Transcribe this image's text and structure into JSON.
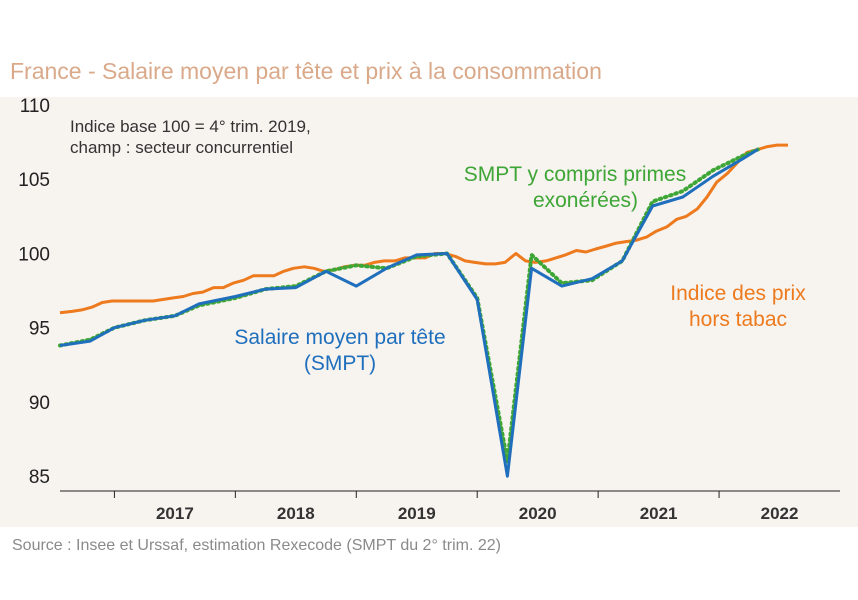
{
  "title": "France - Salaire moyen par tête et prix à la consommation",
  "source": "Source : Insee et Urssaf, estimation Rexecode (SMPT du 2° trim. 22)",
  "note_line1": "Indice base 100 = 4° trim. 2019,",
  "note_line2": "champ : secteur concurrentiel",
  "labels": {
    "smpt_primes_1": "SMPT y compris primes",
    "smpt_primes_2": "exonérées)",
    "prix_1": "Indice des prix",
    "prix_2": "hors tabac",
    "smpt_1": "Salaire moyen par tête",
    "smpt_2": "(SMPT)"
  },
  "colors": {
    "background": "#f7f3ef",
    "smpt": "#1f6fbd",
    "smpt_primes": "#3ea636",
    "prix": "#ee7a1e",
    "title": "#d9a98a"
  },
  "chart_data": {
    "type": "line",
    "title": "France - Salaire moyen par tête et prix à la consommation",
    "xlabel": "",
    "ylabel": "",
    "x_ticks": [
      "2017",
      "2018",
      "2019",
      "2020",
      "2021",
      "2022"
    ],
    "y_ticks": [
      85,
      90,
      95,
      100,
      105,
      110
    ],
    "ylim": [
      84,
      110
    ],
    "xlim": [
      2016.15,
      2022.6
    ],
    "grid": false,
    "series": [
      {
        "key": "prix",
        "style": "solid",
        "x": [
          2016.15,
          2016.25,
          2016.33,
          2016.42,
          2016.5,
          2016.58,
          2016.67,
          2016.75,
          2016.83,
          2016.92,
          2017.0,
          2017.08,
          2017.17,
          2017.25,
          2017.33,
          2017.42,
          2017.5,
          2017.58,
          2017.67,
          2017.75,
          2017.83,
          2017.92,
          2018.0,
          2018.08,
          2018.17,
          2018.25,
          2018.33,
          2018.42,
          2018.5,
          2018.58,
          2018.67,
          2018.75,
          2018.83,
          2018.92,
          2019.0,
          2019.08,
          2019.17,
          2019.25,
          2019.33,
          2019.42,
          2019.5,
          2019.58,
          2019.67,
          2019.75,
          2019.83,
          2019.92,
          2020.0,
          2020.08,
          2020.17,
          2020.25,
          2020.33,
          2020.42,
          2020.5,
          2020.58,
          2020.67,
          2020.75,
          2020.83,
          2020.92,
          2021.0,
          2021.08,
          2021.17,
          2021.25,
          2021.33,
          2021.42,
          2021.5,
          2021.58,
          2021.67,
          2021.75,
          2021.83,
          2021.92,
          2022.0,
          2022.08,
          2022.17
        ],
        "y": [
          96.0,
          96.1,
          96.2,
          96.4,
          96.7,
          96.8,
          96.8,
          96.8,
          96.8,
          96.8,
          96.9,
          97.0,
          97.1,
          97.3,
          97.4,
          97.7,
          97.7,
          98.0,
          98.2,
          98.5,
          98.5,
          98.5,
          98.8,
          99.0,
          99.1,
          99.0,
          98.8,
          98.9,
          99.1,
          99.2,
          99.2,
          99.4,
          99.5,
          99.5,
          99.7,
          99.7,
          99.7,
          100.0,
          100.0,
          99.8,
          99.5,
          99.4,
          99.3,
          99.3,
          99.4,
          100.0,
          99.5,
          99.4,
          99.5,
          99.7,
          99.9,
          100.2,
          100.1,
          100.3,
          100.5,
          100.7,
          100.8,
          100.9,
          101.1,
          101.5,
          101.8,
          102.3,
          102.5,
          103.0,
          103.8,
          104.8,
          105.4,
          106.1,
          106.8,
          107.0,
          107.2,
          107.3,
          107.3
        ]
      },
      {
        "key": "smpt_primes",
        "style": "dotted",
        "x": [
          2016.15,
          2016.4,
          2016.6,
          2016.85,
          2017.1,
          2017.3,
          2017.6,
          2017.85,
          2018.1,
          2018.35,
          2018.6,
          2018.85,
          2019.1,
          2019.35,
          2019.6,
          2019.85,
          2020.05,
          2020.3,
          2020.55,
          2020.8,
          2021.05,
          2021.3,
          2021.55,
          2021.8,
          2021.92
        ],
        "y": [
          93.8,
          94.2,
          95.0,
          95.5,
          95.8,
          96.5,
          97.0,
          97.6,
          97.8,
          98.8,
          99.2,
          99.0,
          99.8,
          100.0,
          97.0,
          86.0,
          99.9,
          98.0,
          98.2,
          99.5,
          103.5,
          104.2,
          105.6,
          106.6,
          107.0
        ]
      },
      {
        "key": "smpt",
        "style": "solid",
        "x": [
          2016.15,
          2016.4,
          2016.6,
          2016.85,
          2017.1,
          2017.3,
          2017.6,
          2017.85,
          2018.1,
          2018.35,
          2018.6,
          2018.85,
          2019.1,
          2019.35,
          2019.6,
          2019.85,
          2020.05,
          2020.3,
          2020.55,
          2020.8,
          2021.05,
          2021.3,
          2021.55,
          2021.8,
          2021.92
        ],
        "y": [
          93.8,
          94.1,
          95.0,
          95.5,
          95.8,
          96.6,
          97.1,
          97.6,
          97.7,
          98.8,
          97.8,
          99.0,
          99.9,
          100.0,
          96.9,
          85.0,
          99.0,
          97.8,
          98.3,
          99.5,
          103.2,
          103.8,
          105.2,
          106.4,
          107.0
        ]
      }
    ]
  }
}
